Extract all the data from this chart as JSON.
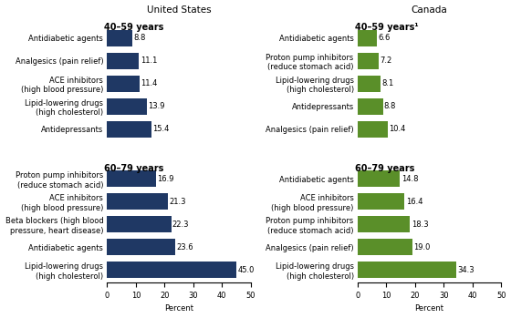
{
  "us_title": "United States",
  "ca_title": "Canada",
  "us_group1_label": "40–59 years",
  "us_group2_label": "60–79 years",
  "ca_group1_label": "40–59 years¹",
  "ca_group2_label": "60–79 years",
  "us_labels": [
    "Antidiabetic agents",
    "Analgesics (pain relief)",
    "ACE inhibitors\n(high blood pressure)",
    "Lipid-lowering drugs\n(high cholesterol)",
    "Antidepressants",
    "Proton pump inhibitors\n(reduce stomach acid)",
    "ACE inhibitors\n(high blood pressure)",
    "Beta blockers (high blood\npressure, heart disease)",
    "Antidiabetic agents",
    "Lipid-lowering drugs\n(high cholesterol)"
  ],
  "us_values": [
    8.8,
    11.1,
    11.4,
    13.9,
    15.4,
    16.9,
    21.3,
    22.3,
    23.6,
    45.0
  ],
  "ca_labels": [
    "Antidiabetic agents",
    "Proton pump inhibitors\n(reduce stomach acid)",
    "Lipid-lowering drugs\n(high cholesterol)",
    "Antidepressants",
    "Analgesics (pain relief)",
    "Antidiabetic agents",
    "ACE inhibitors\n(high blood pressure)",
    "Proton pump inhibitors\n(reduce stomach acid)",
    "Analgesics (pain relief)",
    "Lipid-lowering drugs\n(high cholesterol)"
  ],
  "ca_values": [
    6.6,
    7.2,
    8.1,
    8.8,
    10.4,
    14.8,
    16.4,
    18.3,
    19.0,
    34.3
  ],
  "us_color": "#1f3864",
  "ca_color": "#5a8f29",
  "us_group1_count": 5,
  "us_group2_count": 5,
  "ca_group1_count": 5,
  "ca_group2_count": 5,
  "xlim": [
    0,
    50
  ],
  "xticks": [
    0,
    10,
    20,
    30,
    40,
    50
  ],
  "xlabel": "Percent",
  "value_fontsize": 6.0,
  "label_fontsize": 6.0,
  "title_fontsize": 7.5,
  "group_label_fontsize": 7.0
}
